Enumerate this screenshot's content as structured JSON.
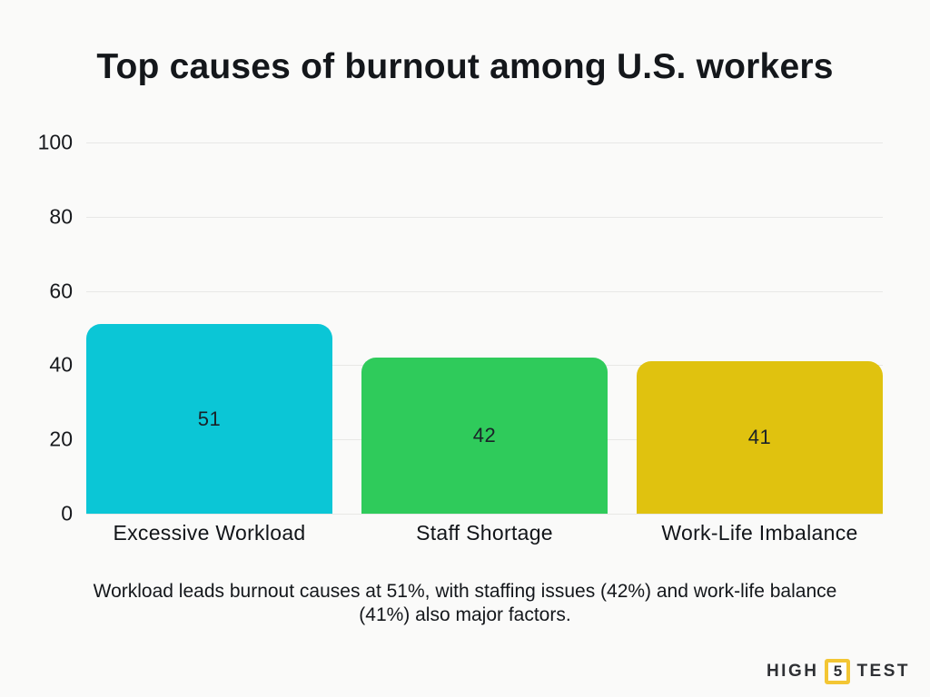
{
  "chart_data": {
    "type": "bar",
    "title": "Top causes of burnout among U.S. workers",
    "categories": [
      "Excessive Workload",
      "Staff Shortage",
      "Work-Life Imbalance"
    ],
    "values": [
      51,
      42,
      41
    ],
    "value_labels": [
      "51",
      "42",
      "41"
    ],
    "bar_colors": [
      "#0BC6D6",
      "#2FCB5B",
      "#E0C20F"
    ],
    "xlabel": "",
    "ylabel": "",
    "ylim": [
      0,
      100
    ],
    "yticks": [
      0,
      20,
      40,
      60,
      80,
      100
    ],
    "grid": true,
    "legend": false
  },
  "caption": "Workload leads burnout causes at 51%, with staffing issues (42%) and work-life balance (41%) also major factors.",
  "logo": {
    "word_high": "HIGH",
    "badge_number": "5",
    "word_test": "TEST"
  },
  "colors": {
    "background": "#FAFAF9",
    "text": "#14171B",
    "gridline": "#E8E8E6",
    "bar_cyan": "#0BC6D6",
    "bar_green": "#2FCB5B",
    "bar_yellow": "#E0C20F",
    "logo_badge_border": "#F3C634"
  }
}
